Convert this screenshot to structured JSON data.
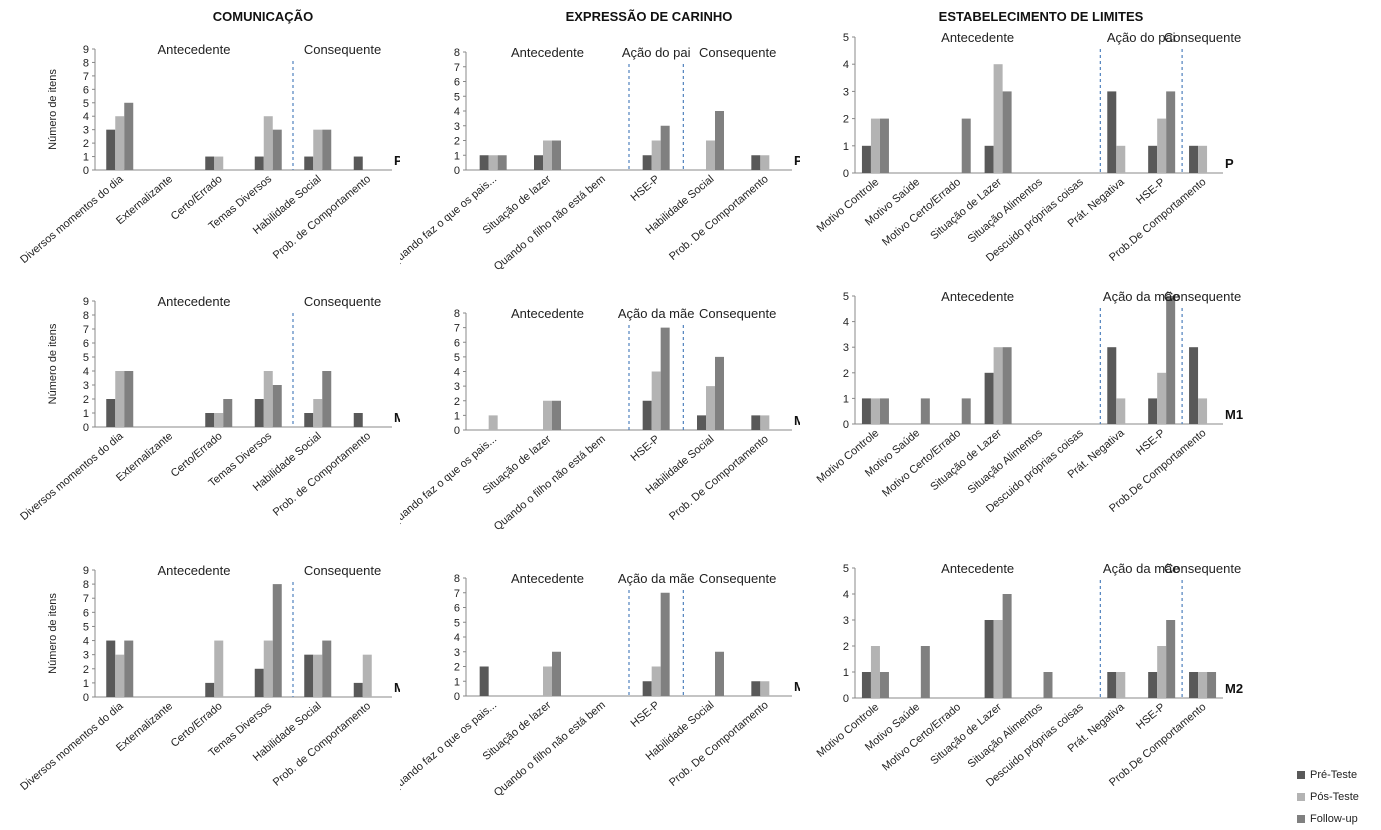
{
  "columns": [
    {
      "title": "COMUNICAÇÃO"
    },
    {
      "title": "EXPRESSÃO DE CARINHO"
    },
    {
      "title": "ESTABELECIMENTO DE LIMITES"
    }
  ],
  "colors": {
    "pre": "#595959",
    "pos": "#b3b3b3",
    "follow": "#808080",
    "divider": "#4f81bd"
  },
  "legend": [
    {
      "key": "pre",
      "label": "Pré-Teste"
    },
    {
      "key": "pos",
      "label": "Pós-Teste"
    },
    {
      "key": "follow",
      "label": "Follow-up"
    }
  ],
  "chart_data": [
    {
      "type": "bar",
      "id": "com-P",
      "respondent": "P",
      "ylabel": "Número de itens",
      "ylim": [
        0,
        9
      ],
      "categories": [
        "Diversos momentos  do dia",
        "Externalizante",
        "Certo/Errado",
        "Temas Diversos",
        "Habilidade Social",
        "Prob. de Comportamento"
      ],
      "groups": [
        {
          "label": "Antecedente",
          "from": 0,
          "to": 3
        },
        {
          "label": "Consequente",
          "from": 4,
          "to": 5
        }
      ],
      "series": [
        {
          "name": "Pré-Teste",
          "key": "pre",
          "values": [
            3,
            0,
            1,
            1,
            1,
            1
          ]
        },
        {
          "name": "Pós-Teste",
          "key": "pos",
          "values": [
            4,
            0,
            1,
            4,
            3,
            0
          ]
        },
        {
          "name": "Follow-up",
          "key": "follow",
          "values": [
            5,
            0,
            0,
            3,
            3,
            0
          ]
        }
      ]
    },
    {
      "type": "bar",
      "id": "car-P",
      "respondent": "P",
      "ylabel": "",
      "ylim": [
        0,
        8
      ],
      "categories": [
        "Quando faz o que os pais...",
        "Situação de lazer",
        "Quando o filho não está bem",
        "HSE-P",
        "Habilidade Social",
        "Prob. De Comportamento"
      ],
      "groups": [
        {
          "label": "Antecedente",
          "from": 0,
          "to": 2
        },
        {
          "label": "Ação do pai",
          "from": 3,
          "to": 3
        },
        {
          "label": "Consequente",
          "from": 4,
          "to": 5
        }
      ],
      "series": [
        {
          "name": "Pré-Teste",
          "key": "pre",
          "values": [
            1,
            1,
            0,
            1,
            0,
            1
          ]
        },
        {
          "name": "Pós-Teste",
          "key": "pos",
          "values": [
            1,
            2,
            0,
            2,
            2,
            1
          ]
        },
        {
          "name": "Follow-up",
          "key": "follow",
          "values": [
            1,
            2,
            0,
            3,
            4,
            0
          ]
        }
      ]
    },
    {
      "type": "bar",
      "id": "lim-P",
      "respondent": "P",
      "ylabel": "",
      "ylim": [
        0,
        5
      ],
      "categories": [
        "Motivo Controle",
        "Motivo Saúde",
        "Motivo Certo/Errado",
        "Situação de Lazer",
        "Situação Alimentos",
        "Descuido próprias coisas",
        "Prát. Negativa",
        "HSE-P",
        "Prob.De Comportamento"
      ],
      "groups": [
        {
          "label": "Antecedente",
          "from": 0,
          "to": 5
        },
        {
          "label": "Ação do pai",
          "from": 6,
          "to": 7
        },
        {
          "label": "Consequente",
          "from": 8,
          "to": 8
        }
      ],
      "series": [
        {
          "name": "Pré-Teste",
          "key": "pre",
          "values": [
            1,
            0,
            0,
            1,
            0,
            0,
            3,
            1,
            1
          ]
        },
        {
          "name": "Pós-Teste",
          "key": "pos",
          "values": [
            2,
            0,
            0,
            4,
            0,
            0,
            1,
            2,
            1
          ]
        },
        {
          "name": "Follow-up",
          "key": "follow",
          "values": [
            2,
            0,
            2,
            3,
            0,
            0,
            0,
            3,
            0
          ]
        }
      ]
    },
    {
      "type": "bar",
      "id": "com-M1",
      "respondent": "M1",
      "ylabel": "Número de itens",
      "ylim": [
        0,
        9
      ],
      "categories": [
        "Diversos momentos  do dia",
        "Externalizante",
        "Certo/Errado",
        "Temas Diversos",
        "Habilidade Social",
        "Prob. de Comportamento"
      ],
      "groups": [
        {
          "label": "Antecedente",
          "from": 0,
          "to": 3
        },
        {
          "label": "Consequente",
          "from": 4,
          "to": 5
        }
      ],
      "series": [
        {
          "name": "Pré-Teste",
          "key": "pre",
          "values": [
            2,
            0,
            1,
            2,
            1,
            1
          ]
        },
        {
          "name": "Pós-Teste",
          "key": "pos",
          "values": [
            4,
            0,
            1,
            4,
            2,
            0
          ]
        },
        {
          "name": "Follow-up",
          "key": "follow",
          "values": [
            4,
            0,
            2,
            3,
            4,
            0
          ]
        }
      ]
    },
    {
      "type": "bar",
      "id": "car-M1",
      "respondent": "M1",
      "ylabel": "",
      "ylim": [
        0,
        8
      ],
      "categories": [
        "Quando faz o que os pais...",
        "Situação de lazer",
        "Quando o filho não está bem",
        "HSE-P",
        "Habilidade Social",
        "Prob. De Comportamento"
      ],
      "groups": [
        {
          "label": "Antecedente",
          "from": 0,
          "to": 2
        },
        {
          "label": "Ação da mãe",
          "from": 3,
          "to": 3
        },
        {
          "label": "Consequente",
          "from": 4,
          "to": 5
        }
      ],
      "series": [
        {
          "name": "Pré-Teste",
          "key": "pre",
          "values": [
            0,
            0,
            0,
            2,
            1,
            1
          ]
        },
        {
          "name": "Pós-Teste",
          "key": "pos",
          "values": [
            1,
            2,
            0,
            4,
            3,
            1
          ]
        },
        {
          "name": "Follow-up",
          "key": "follow",
          "values": [
            0,
            2,
            0,
            7,
            5,
            0
          ]
        }
      ]
    },
    {
      "type": "bar",
      "id": "lim-M1",
      "respondent": "M1",
      "ylabel": "",
      "ylim": [
        0,
        5
      ],
      "categories": [
        "Motivo Controle",
        "Motivo Saúde",
        "Motivo Certo/Errado",
        "Situação de Lazer",
        "Situação Alimentos",
        "Descuido próprias coisas",
        "Prát. Negativa",
        "HSE-P",
        "Prob.De Comportamento"
      ],
      "groups": [
        {
          "label": "Antecedente",
          "from": 0,
          "to": 5
        },
        {
          "label": "Ação da mãe",
          "from": 6,
          "to": 7
        },
        {
          "label": "Consequente",
          "from": 8,
          "to": 8
        }
      ],
      "series": [
        {
          "name": "Pré-Teste",
          "key": "pre",
          "values": [
            1,
            0,
            0,
            2,
            0,
            0,
            3,
            1,
            3
          ]
        },
        {
          "name": "Pós-Teste",
          "key": "pos",
          "values": [
            1,
            0,
            0,
            3,
            0,
            0,
            1,
            2,
            1
          ]
        },
        {
          "name": "Follow-up",
          "key": "follow",
          "values": [
            1,
            1,
            1,
            3,
            0,
            0,
            0,
            5,
            0
          ]
        }
      ]
    },
    {
      "type": "bar",
      "id": "com-M2",
      "respondent": "M2",
      "ylabel": "Número de itens",
      "ylim": [
        0,
        9
      ],
      "categories": [
        "Diversos momentos  do dia",
        "Externalizante",
        "Certo/Errado",
        "Temas Diversos",
        "Habilidade Social",
        "Prob. de Comportamento"
      ],
      "groups": [
        {
          "label": "Antecedente",
          "from": 0,
          "to": 3
        },
        {
          "label": "Consequente",
          "from": 4,
          "to": 5
        }
      ],
      "series": [
        {
          "name": "Pré-Teste",
          "key": "pre",
          "values": [
            4,
            0,
            1,
            2,
            3,
            1
          ]
        },
        {
          "name": "Pós-Teste",
          "key": "pos",
          "values": [
            3,
            0,
            4,
            4,
            3,
            3
          ]
        },
        {
          "name": "Follow-up",
          "key": "follow",
          "values": [
            4,
            0,
            0,
            8,
            4,
            0
          ]
        }
      ]
    },
    {
      "type": "bar",
      "id": "car-M2",
      "respondent": "M2",
      "ylabel": "",
      "ylim": [
        0,
        8
      ],
      "categories": [
        "Quando faz o que os pais...",
        "Situação de lazer",
        "Quando o filho não está bem",
        "HSE-P",
        "Habilidade Social",
        "Prob. De Comportamento"
      ],
      "groups": [
        {
          "label": "Antecedente",
          "from": 0,
          "to": 2
        },
        {
          "label": "Ação da mãe",
          "from": 3,
          "to": 3
        },
        {
          "label": "Consequente",
          "from": 4,
          "to": 5
        }
      ],
      "series": [
        {
          "name": "Pré-Teste",
          "key": "pre",
          "values": [
            2,
            0,
            0,
            1,
            0,
            1
          ]
        },
        {
          "name": "Pós-Teste",
          "key": "pos",
          "values": [
            0,
            2,
            0,
            2,
            0,
            1
          ]
        },
        {
          "name": "Follow-up",
          "key": "follow",
          "values": [
            0,
            3,
            0,
            7,
            3,
            0
          ]
        }
      ]
    },
    {
      "type": "bar",
      "id": "lim-M2",
      "respondent": "M2",
      "ylabel": "",
      "ylim": [
        0,
        5
      ],
      "categories": [
        "Motivo Controle",
        "Motivo Saúde",
        "Motivo Certo/Errado",
        "Situação de Lazer",
        "Situação Alimentos",
        "Descuido próprias coisas",
        "Prát. Negativa",
        "HSE-P",
        "Prob.De Comportamento"
      ],
      "groups": [
        {
          "label": "Antecedente",
          "from": 0,
          "to": 5
        },
        {
          "label": "Ação da mãe",
          "from": 6,
          "to": 7
        },
        {
          "label": "Consequente",
          "from": 8,
          "to": 8
        }
      ],
      "series": [
        {
          "name": "Pré-Teste",
          "key": "pre",
          "values": [
            1,
            0,
            0,
            3,
            0,
            0,
            1,
            1,
            1
          ]
        },
        {
          "name": "Pós-Teste",
          "key": "pos",
          "values": [
            2,
            0,
            0,
            3,
            0,
            0,
            1,
            2,
            1
          ]
        },
        {
          "name": "Follow-up",
          "key": "follow",
          "values": [
            1,
            2,
            0,
            4,
            1,
            0,
            0,
            3,
            1
          ]
        }
      ]
    }
  ]
}
